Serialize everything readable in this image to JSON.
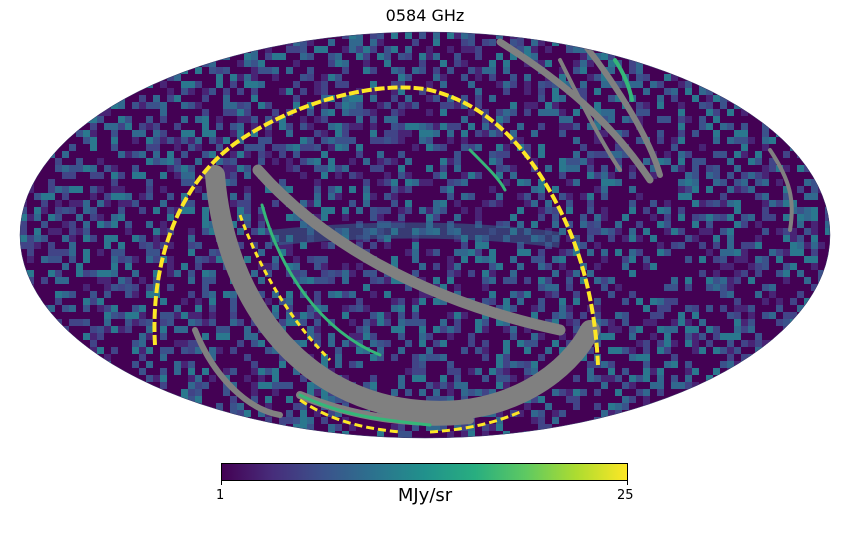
{
  "title": "0584 GHz",
  "colorbar": {
    "min_label": "1",
    "max_label": "25",
    "unit": "MJy/sr",
    "colormap": "viridis",
    "stops": [
      "#440154",
      "#472d7b",
      "#3b528b",
      "#2c728e",
      "#21918c",
      "#28ae80",
      "#5ec962",
      "#addc30",
      "#fde725"
    ]
  },
  "map": {
    "projection": "mollweide",
    "background_color": "#440154",
    "masked_color": "#808080",
    "saturated_color": "#fde725"
  }
}
